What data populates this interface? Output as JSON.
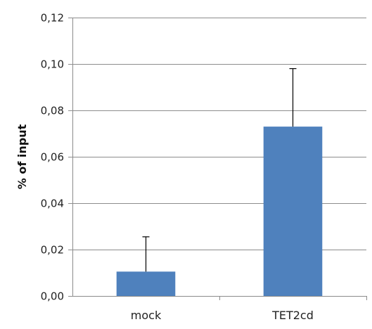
{
  "chart_data": {
    "type": "bar",
    "title": "",
    "xlabel": "",
    "ylabel": "% of input",
    "categories": [
      "mock",
      "TET2cd"
    ],
    "values": [
      0.0105,
      0.073
    ],
    "error_plus": [
      0.015,
      0.025
    ],
    "ylim": [
      0,
      0.12
    ],
    "yticks": [
      0,
      0.02,
      0.04,
      0.06,
      0.08,
      0.1,
      0.12
    ],
    "ytick_labels": [
      "0,00",
      "0,02",
      "0,04",
      "0,06",
      "0,08",
      "0,10",
      "0,12"
    ],
    "grid": "horizontal",
    "legend": "none",
    "bar_color": "#4f81bd",
    "gridline_color": "#8c8c8c",
    "axis_color": "#8c8c8c",
    "error_bar_color": "#000000"
  }
}
